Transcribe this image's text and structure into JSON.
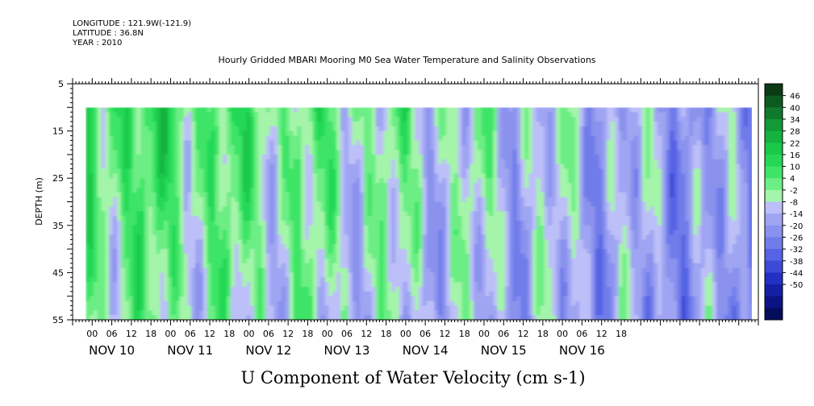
{
  "header": {
    "longitude": "LONGITUDE : 121.9W(-121.9)",
    "latitude": "LATITUDE : 36.8N",
    "year": "YEAR : 2010"
  },
  "chart_data": {
    "type": "heatmap",
    "title": "Hourly Gridded MBARI Mooring M0 Sea Water Temperature and Salinity Observations",
    "xlabel": "U Component of Water Velocity (cm s-1)",
    "ylabel": "DEPTH (m)",
    "y_ticks": [
      5,
      15,
      25,
      35,
      45,
      55
    ],
    "y_range": [
      5,
      55
    ],
    "y_data_range": [
      10,
      55
    ],
    "x_range_hours": [
      0,
      210
    ],
    "x_hour_ticks": [
      "00",
      "06",
      "12",
      "18",
      "00",
      "06",
      "12",
      "18",
      "00",
      "06",
      "12",
      "18",
      "00",
      "06",
      "12",
      "18",
      "00",
      "06",
      "12",
      "18",
      "00",
      "06",
      "12",
      "18",
      "00",
      "06",
      "12",
      "18"
    ],
    "x_day_labels": [
      "NOV 10",
      "NOV 11",
      "NOV 12",
      "NOV 13",
      "NOV 14",
      "NOV 15",
      "NOV 16"
    ],
    "data_start_hour": 4,
    "data_end_hour": 208,
    "colorbar_levels": [
      "46",
      "40",
      "34",
      "28",
      "22",
      "16",
      "10",
      "4",
      "-2",
      "-8",
      "-14",
      "-20",
      "-26",
      "-32",
      "-38",
      "-44",
      "-50"
    ],
    "colorbar_colors": [
      "#0c3a14",
      "#0d5a20",
      "#107a2c",
      "#129a36",
      "#15b23f",
      "#1ac84a",
      "#24d856",
      "#3ee466",
      "#6cee84",
      "#a4f4aa",
      "#bcbff8",
      "#9fa5f2",
      "#8a92ee",
      "#6f7cea",
      "#5663e4",
      "#3c4ad8",
      "#2230c4",
      "#1420a4",
      "#0c1484",
      "#060c5c"
    ]
  }
}
